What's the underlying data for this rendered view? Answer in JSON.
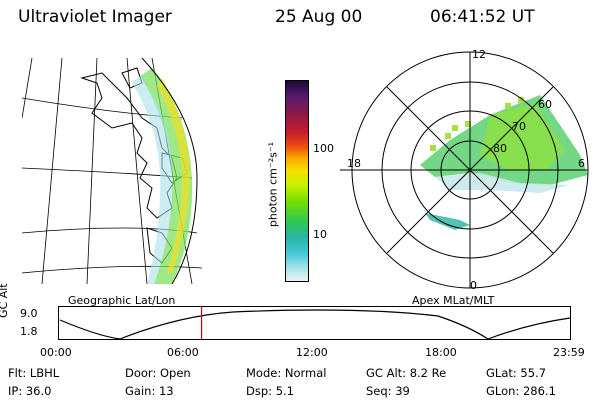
{
  "header": {
    "instrument": "Ultraviolet Imager",
    "date": "25 Aug 00",
    "time": "06:41:52 UT"
  },
  "colorbar": {
    "unit_label": "photon cm⁻²s⁻¹",
    "tick_labels": [
      "100",
      "10"
    ],
    "colors": [
      "#1a0a3a",
      "#5a1a6e",
      "#8a1a4a",
      "#c81e28",
      "#f05010",
      "#f8a000",
      "#f8e000",
      "#c8f000",
      "#78e000",
      "#30c850",
      "#28b4a0",
      "#40c8d8",
      "#a0e0e8",
      "#e8f4f4"
    ]
  },
  "left_panel": {
    "caption": "Geographic Lat/Lon"
  },
  "right_panel": {
    "caption": "Apex MLat/MLT",
    "mlt_labels": {
      "top": "12",
      "left": "18",
      "right": "6",
      "bottom": "0"
    },
    "mlat_labels": [
      "60",
      "70",
      "80"
    ]
  },
  "timeline": {
    "ylabel": "GC Alt",
    "y_ticks": [
      "9.0",
      "1.8"
    ],
    "x_ticks": [
      "00:00",
      "06:00",
      "12:00",
      "18:00",
      "23:59"
    ],
    "marker_color": "#d00000",
    "marker_time_fraction": 0.279
  },
  "footer": {
    "row1": [
      {
        "label": "Flt:",
        "value": "LBHL"
      },
      {
        "label": "Door:",
        "value": "Open"
      },
      {
        "label": "Mode:",
        "value": "Normal"
      },
      {
        "label": "GC Alt:",
        "value": "8.2 Re"
      },
      {
        "label": "GLat:",
        "value": "55.7"
      }
    ],
    "row2": [
      {
        "label": "IP:",
        "value": "36.0"
      },
      {
        "label": "Gain:",
        "value": "13"
      },
      {
        "label": "Dsp:",
        "value": "5.1"
      },
      {
        "label": "Seq:",
        "value": "39"
      },
      {
        "label": "GLon:",
        "value": "286.1"
      }
    ]
  }
}
